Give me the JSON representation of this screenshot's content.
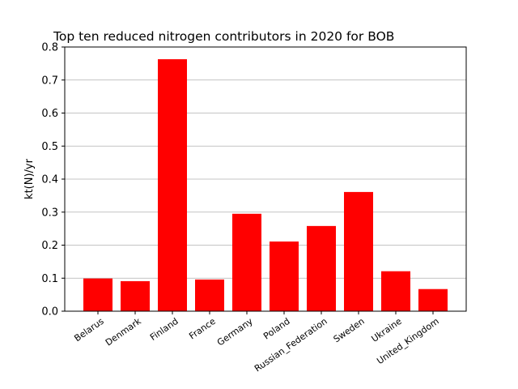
{
  "chart_data": {
    "type": "bar",
    "title": "Top ten reduced nitrogen contributors in 2020 for  BOB",
    "xlabel": "",
    "ylabel": "kt(N)/yr",
    "categories": [
      "Belarus",
      "Denmark",
      "Finland",
      "France",
      "Germany",
      "Poland",
      "Russian_Federation",
      "Sweden",
      "Ukraine",
      "United_Kingdom"
    ],
    "values": [
      0.099,
      0.091,
      0.763,
      0.096,
      0.295,
      0.211,
      0.258,
      0.361,
      0.121,
      0.067
    ],
    "ylim": [
      0,
      0.8
    ],
    "yticks": [
      "0.0",
      "0.1",
      "0.2",
      "0.3",
      "0.4",
      "0.5",
      "0.6",
      "0.7",
      "0.8"
    ],
    "grid": "horizontal",
    "bar_color": "#ff0000"
  }
}
